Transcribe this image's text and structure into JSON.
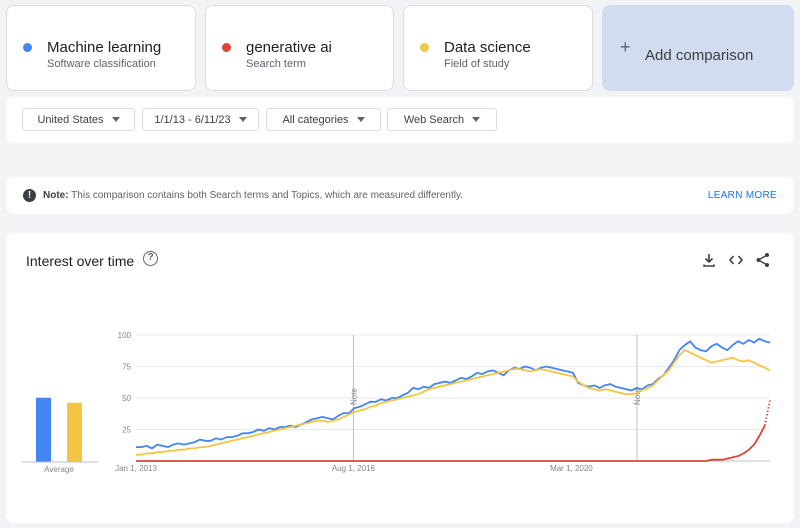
{
  "terms": [
    {
      "name": "Machine learning",
      "type": "Software classification",
      "color": "#4285f4"
    },
    {
      "name": "generative ai",
      "type": "Search term",
      "color": "#db4437"
    },
    {
      "name": "Data science",
      "type": "Field of study",
      "color": "#f4c542"
    }
  ],
  "add_comparison": {
    "icon": "plus-icon",
    "label": "Add comparison"
  },
  "filters": {
    "region": "United States",
    "date_range": "1/1/13 - 6/11/23",
    "category": "All categories",
    "search_type": "Web Search"
  },
  "note": {
    "label": "Note:",
    "text": "This comparison contains both Search terms and Topics, which are measured differently.",
    "link": "LEARN MORE"
  },
  "chart_panel": {
    "title": "Interest over time",
    "icons": [
      "help-icon",
      "download-icon",
      "embed-icon",
      "share-icon"
    ]
  },
  "chart_data": {
    "type": "line",
    "x_ticks": [
      "Jan 1, 2013",
      "Aug 1, 2016",
      "Mar 1, 2020"
    ],
    "y_ticks": [
      25,
      50,
      75,
      100
    ],
    "ylim": [
      0,
      100
    ],
    "note_markers": [
      "Aug 1, 2016",
      "Apr 1, 2021"
    ],
    "note_label": "Note",
    "series": [
      {
        "name": "Machine learning",
        "color": "#4285f4",
        "values": [
          11,
          11,
          12,
          10,
          13,
          12,
          11,
          13,
          14,
          13,
          14,
          15,
          17,
          16,
          16,
          18,
          17,
          19,
          19,
          20,
          22,
          22,
          23,
          25,
          24,
          26,
          25,
          27,
          27,
          28,
          27,
          29,
          31,
          33,
          34,
          35,
          34,
          33,
          36,
          38,
          38,
          42,
          43,
          45,
          47,
          47,
          49,
          48,
          50,
          50,
          52,
          54,
          58,
          57,
          59,
          58,
          61,
          62,
          63,
          62,
          64,
          66,
          65,
          67,
          70,
          69,
          71,
          72,
          70,
          68,
          72,
          74,
          73,
          75,
          74,
          72,
          74,
          75,
          74,
          73,
          72,
          71,
          70,
          62,
          60,
          59,
          60,
          58,
          60,
          61,
          59,
          58,
          57,
          56,
          58,
          57,
          60,
          61,
          65,
          68,
          74,
          80,
          88,
          92,
          95,
          90,
          88,
          87,
          91,
          93,
          90,
          88,
          92,
          95,
          93,
          96,
          94,
          97,
          95,
          94
        ]
      },
      {
        "name": "Data science",
        "color": "#f4c542",
        "values": [
          5,
          5,
          6,
          6,
          7,
          7,
          8,
          8,
          9,
          9,
          10,
          10,
          11,
          11,
          12,
          13,
          14,
          15,
          16,
          17,
          18,
          19,
          20,
          21,
          22,
          23,
          24,
          25,
          26,
          27,
          28,
          29,
          30,
          31,
          32,
          32,
          31,
          32,
          33,
          35,
          37,
          39,
          40,
          41,
          43,
          44,
          46,
          47,
          48,
          49,
          50,
          51,
          52,
          53,
          55,
          57,
          58,
          59,
          60,
          61,
          62,
          63,
          64,
          65,
          66,
          67,
          68,
          69,
          70,
          71,
          72,
          73,
          73,
          72,
          71,
          72,
          73,
          72,
          71,
          70,
          69,
          68,
          67,
          63,
          60,
          58,
          57,
          56,
          57,
          56,
          55,
          54,
          53,
          53,
          54,
          56,
          58,
          60,
          64,
          68,
          72,
          78,
          84,
          88,
          86,
          84,
          82,
          80,
          78,
          79,
          80,
          81,
          82,
          80,
          79,
          80,
          78,
          76,
          74,
          72
        ]
      },
      {
        "name": "generative ai",
        "color": "#db4437",
        "values": [
          0,
          0,
          0,
          0,
          0,
          0,
          0,
          0,
          0,
          0,
          0,
          0,
          0,
          0,
          0,
          0,
          0,
          0,
          0,
          0,
          0,
          0,
          0,
          0,
          0,
          0,
          0,
          0,
          0,
          0,
          0,
          0,
          0,
          0,
          0,
          0,
          0,
          0,
          0,
          0,
          0,
          0,
          0,
          0,
          0,
          0,
          0,
          0,
          0,
          0,
          0,
          0,
          0,
          0,
          0,
          0,
          0,
          0,
          0,
          0,
          0,
          0,
          0,
          0,
          0,
          0,
          0,
          0,
          0,
          0,
          0,
          0,
          0,
          0,
          0,
          0,
          0,
          0,
          0,
          0,
          0,
          0,
          0,
          0,
          0,
          0,
          0,
          0,
          0,
          0,
          0,
          0,
          0,
          0,
          0,
          0,
          0,
          0,
          0,
          0,
          0,
          0,
          0,
          0,
          0,
          0,
          0,
          0,
          0,
          1,
          1,
          1,
          2,
          3,
          4,
          6,
          9,
          13,
          20,
          28,
          36
        ]
      }
    ],
    "averages": {
      "label": "Average",
      "values": [
        {
          "name": "Machine learning",
          "value": 51
        },
        {
          "name": "Data science",
          "value": 47
        }
      ]
    }
  }
}
